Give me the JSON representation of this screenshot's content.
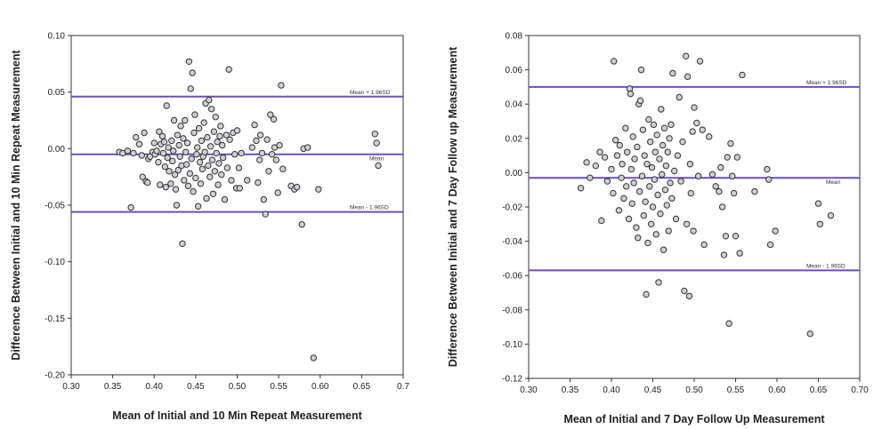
{
  "chart_data": [
    {
      "type": "scatter",
      "xlabel": "Mean of Initial and 10 Min Repeat Measurement",
      "ylabel": "Difference Between Initial and 10 Min Repeat Measurement",
      "xlim": [
        0.3,
        0.7
      ],
      "ylim": [
        -0.2,
        0.1
      ],
      "xticks": [
        "0.30",
        "0.35",
        "0.40",
        "0.45",
        "0.50",
        "0.55",
        "0.60",
        "0.65",
        "0.7"
      ],
      "yticks": [
        "0.10",
        "0.05",
        "0.00",
        "-0.05",
        "-0.10",
        "-0.15",
        "-0.20"
      ],
      "reference_lines": [
        {
          "label": "Mean + 1.96SD",
          "y": 0.046
        },
        {
          "label": "Mean",
          "y": -0.005
        },
        {
          "label": "Mean - 1.96SD",
          "y": -0.056
        }
      ],
      "points": [
        [
          0.358,
          -0.003
        ],
        [
          0.362,
          -0.004
        ],
        [
          0.368,
          -0.002
        ],
        [
          0.372,
          -0.052
        ],
        [
          0.375,
          -0.004
        ],
        [
          0.378,
          0.01
        ],
        [
          0.382,
          0.004
        ],
        [
          0.385,
          -0.006
        ],
        [
          0.386,
          -0.025
        ],
        [
          0.388,
          0.014
        ],
        [
          0.39,
          -0.029
        ],
        [
          0.392,
          -0.03
        ],
        [
          0.393,
          -0.009
        ],
        [
          0.395,
          -0.007
        ],
        [
          0.398,
          -0.003
        ],
        [
          0.4,
          0.005
        ],
        [
          0.401,
          -0.005
        ],
        [
          0.403,
          -0.002
        ],
        [
          0.405,
          -0.012
        ],
        [
          0.406,
          0.015
        ],
        [
          0.407,
          -0.032
        ],
        [
          0.408,
          0.004
        ],
        [
          0.41,
          0.011
        ],
        [
          0.411,
          -0.004
        ],
        [
          0.412,
          0.006
        ],
        [
          0.413,
          -0.016
        ],
        [
          0.414,
          -0.034
        ],
        [
          0.415,
          0.038
        ],
        [
          0.416,
          -0.008
        ],
        [
          0.417,
          0.001
        ],
        [
          0.418,
          -0.02
        ],
        [
          0.42,
          -0.031
        ],
        [
          0.421,
          0.007
        ],
        [
          0.422,
          -0.011
        ],
        [
          0.423,
          -0.002
        ],
        [
          0.424,
          0.025
        ],
        [
          0.425,
          -0.023
        ],
        [
          0.426,
          -0.036
        ],
        [
          0.427,
          -0.05
        ],
        [
          0.428,
          0.012
        ],
        [
          0.429,
          -0.019
        ],
        [
          0.43,
          0.003
        ],
        [
          0.431,
          -0.007
        ],
        [
          0.432,
          0.02
        ],
        [
          0.433,
          -0.015
        ],
        [
          0.434,
          -0.084
        ],
        [
          0.435,
          0.009
        ],
        [
          0.436,
          -0.028
        ],
        [
          0.437,
          0.025
        ],
        [
          0.438,
          -0.003
        ],
        [
          0.439,
          -0.014
        ],
        [
          0.44,
          0.005
        ],
        [
          0.441,
          -0.033
        ],
        [
          0.442,
          0.077
        ],
        [
          0.443,
          -0.022
        ],
        [
          0.444,
          0.053
        ],
        [
          0.445,
          -0.009
        ],
        [
          0.446,
          0.067
        ],
        [
          0.447,
          -0.038
        ],
        [
          0.448,
          0.014
        ],
        [
          0.449,
          0.03
        ],
        [
          0.45,
          -0.026
        ],
        [
          0.451,
          -0.005
        ],
        [
          0.452,
          0.001
        ],
        [
          0.453,
          -0.051
        ],
        [
          0.454,
          0.018
        ],
        [
          0.455,
          -0.012
        ],
        [
          0.456,
          -0.031
        ],
        [
          0.457,
          0.007
        ],
        [
          0.458,
          -0.018
        ],
        [
          0.459,
          -0.007
        ],
        [
          0.46,
          0.023
        ],
        [
          0.461,
          -0.003
        ],
        [
          0.462,
          0.04
        ],
        [
          0.463,
          -0.044
        ],
        [
          0.464,
          0.01
        ],
        [
          0.465,
          -0.015
        ],
        [
          0.466,
          0.043
        ],
        [
          0.467,
          -0.025
        ],
        [
          0.468,
          0.002
        ],
        [
          0.469,
          0.035
        ],
        [
          0.47,
          -0.01
        ],
        [
          0.471,
          -0.04
        ],
        [
          0.472,
          0.015
        ],
        [
          0.473,
          -0.02
        ],
        [
          0.474,
          0.028
        ],
        [
          0.475,
          -0.004
        ],
        [
          0.476,
          0.006
        ],
        [
          0.477,
          -0.032
        ],
        [
          0.478,
          -0.013
        ],
        [
          0.479,
          0.011
        ],
        [
          0.48,
          0.02
        ],
        [
          0.481,
          -0.023
        ],
        [
          0.482,
          0.003
        ],
        [
          0.483,
          -0.008
        ],
        [
          0.485,
          -0.045
        ],
        [
          0.487,
          0.012
        ],
        [
          0.488,
          -0.017
        ],
        [
          0.49,
          0.07
        ],
        [
          0.491,
          0.008
        ],
        [
          0.493,
          -0.028
        ],
        [
          0.495,
          0.014
        ],
        [
          0.497,
          -0.005
        ],
        [
          0.499,
          -0.035
        ],
        [
          0.5,
          0.016
        ],
        [
          0.502,
          -0.017
        ],
        [
          0.503,
          -0.035
        ],
        [
          0.505,
          -0.004
        ],
        [
          0.512,
          -0.028
        ],
        [
          0.518,
          0.001
        ],
        [
          0.521,
          0.021
        ],
        [
          0.523,
          0.007
        ],
        [
          0.525,
          -0.03
        ],
        [
          0.527,
          -0.01
        ],
        [
          0.528,
          0.012
        ],
        [
          0.53,
          -0.004
        ],
        [
          0.532,
          -0.045
        ],
        [
          0.534,
          -0.058
        ],
        [
          0.536,
          0.008
        ],
        [
          0.538,
          -0.02
        ],
        [
          0.54,
          0.03
        ],
        [
          0.542,
          -0.005
        ],
        [
          0.544,
          0.026
        ],
        [
          0.545,
          0.001
        ],
        [
          0.547,
          -0.01
        ],
        [
          0.549,
          -0.039
        ],
        [
          0.551,
          0.003
        ],
        [
          0.553,
          0.056
        ],
        [
          0.555,
          -0.018
        ],
        [
          0.565,
          -0.033
        ],
        [
          0.569,
          -0.036
        ],
        [
          0.572,
          -0.034
        ],
        [
          0.578,
          -0.067
        ],
        [
          0.58,
          0.0
        ],
        [
          0.585,
          0.001
        ],
        [
          0.592,
          -0.185
        ],
        [
          0.598,
          -0.036
        ],
        [
          0.666,
          0.013
        ],
        [
          0.668,
          0.005
        ],
        [
          0.67,
          -0.015
        ]
      ]
    },
    {
      "type": "scatter",
      "xlabel": "Mean of Initial and 7 Day Follow Up Measurement",
      "ylabel": "Difference Between Initial and 7 Day Follow up Measurement",
      "xlim": [
        0.3,
        0.7
      ],
      "ylim": [
        -0.12,
        0.08
      ],
      "xticks": [
        "0.30",
        "0.35",
        "0.40",
        "0.45",
        "0.50",
        "0.55",
        "0.60",
        "0.65",
        "0.70"
      ],
      "yticks": [
        "0.08",
        "0.06",
        "0.04",
        "0.02",
        "0.00",
        "-0.02",
        "-0.04",
        "-0.06",
        "-0.08",
        "-0.10",
        "-0.12"
      ],
      "reference_lines": [
        {
          "label": "Mean + 1.96SD",
          "y": 0.05
        },
        {
          "label": "Mean",
          "y": -0.003
        },
        {
          "label": "Mean - 1.96SD",
          "y": -0.057
        }
      ],
      "points": [
        [
          0.363,
          -0.009
        ],
        [
          0.37,
          0.006
        ],
        [
          0.374,
          -0.003
        ],
        [
          0.381,
          0.004
        ],
        [
          0.386,
          0.012
        ],
        [
          0.388,
          -0.028
        ],
        [
          0.392,
          0.009
        ],
        [
          0.395,
          -0.005
        ],
        [
          0.4,
          0.002
        ],
        [
          0.402,
          -0.012
        ],
        [
          0.403,
          0.065
        ],
        [
          0.405,
          0.019
        ],
        [
          0.407,
          0.01
        ],
        [
          0.409,
          -0.022
        ],
        [
          0.41,
          0.016
        ],
        [
          0.412,
          -0.003
        ],
        [
          0.413,
          0.005
        ],
        [
          0.415,
          -0.015
        ],
        [
          0.417,
          0.026
        ],
        [
          0.418,
          -0.008
        ],
        [
          0.419,
          0.012
        ],
        [
          0.421,
          -0.027
        ],
        [
          0.422,
          0.049
        ],
        [
          0.423,
          0.046
        ],
        [
          0.424,
          0.002
        ],
        [
          0.425,
          -0.018
        ],
        [
          0.426,
          0.021
        ],
        [
          0.427,
          -0.006
        ],
        [
          0.428,
          0.008
        ],
        [
          0.43,
          -0.032
        ],
        [
          0.431,
          0.015
        ],
        [
          0.432,
          -0.038
        ],
        [
          0.433,
          0.04
        ],
        [
          0.434,
          -0.011
        ],
        [
          0.435,
          0.042
        ],
        [
          0.436,
          0.06
        ],
        [
          0.437,
          -0.002
        ],
        [
          0.438,
          0.025
        ],
        [
          0.439,
          -0.025
        ],
        [
          0.44,
          0.01
        ],
        [
          0.441,
          -0.017
        ],
        [
          0.442,
          -0.071
        ],
        [
          0.443,
          0.005
        ],
        [
          0.444,
          -0.041
        ],
        [
          0.445,
          0.031
        ],
        [
          0.446,
          -0.008
        ],
        [
          0.447,
          0.018
        ],
        [
          0.448,
          -0.03
        ],
        [
          0.449,
          0.003
        ],
        [
          0.45,
          -0.02
        ],
        [
          0.451,
          0.028
        ],
        [
          0.452,
          -0.004
        ],
        [
          0.453,
          0.012
        ],
        [
          0.454,
          -0.036
        ],
        [
          0.455,
          0.022
        ],
        [
          0.456,
          -0.013
        ],
        [
          0.457,
          -0.064
        ],
        [
          0.458,
          0.008
        ],
        [
          0.459,
          -0.024
        ],
        [
          0.46,
          0.037
        ],
        [
          0.461,
          -0.001
        ],
        [
          0.462,
          0.016
        ],
        [
          0.463,
          -0.045
        ],
        [
          0.464,
          0.026
        ],
        [
          0.465,
          -0.01
        ],
        [
          0.466,
          0.004
        ],
        [
          0.467,
          -0.019
        ],
        [
          0.468,
          0.012
        ],
        [
          0.469,
          -0.034
        ],
        [
          0.47,
          0.02
        ],
        [
          0.471,
          -0.006
        ],
        [
          0.472,
          0.028
        ],
        [
          0.473,
          -0.015
        ],
        [
          0.474,
          0.058
        ],
        [
          0.476,
          0.001
        ],
        [
          0.478,
          -0.027
        ],
        [
          0.48,
          0.01
        ],
        [
          0.482,
          0.044
        ],
        [
          0.484,
          -0.005
        ],
        [
          0.486,
          0.018
        ],
        [
          0.488,
          -0.069
        ],
        [
          0.49,
          0.068
        ],
        [
          0.491,
          -0.03
        ],
        [
          0.492,
          0.056
        ],
        [
          0.494,
          -0.072
        ],
        [
          0.495,
          0.005
        ],
        [
          0.496,
          -0.012
        ],
        [
          0.498,
          0.024
        ],
        [
          0.499,
          -0.034
        ],
        [
          0.5,
          0.038
        ],
        [
          0.503,
          0.029
        ],
        [
          0.505,
          -0.002
        ],
        [
          0.507,
          0.065
        ],
        [
          0.51,
          0.025
        ],
        [
          0.512,
          -0.042
        ],
        [
          0.518,
          0.021
        ],
        [
          0.522,
          -0.001
        ],
        [
          0.526,
          -0.008
        ],
        [
          0.53,
          -0.011
        ],
        [
          0.532,
          0.003
        ],
        [
          0.534,
          -0.02
        ],
        [
          0.536,
          -0.048
        ],
        [
          0.538,
          -0.037
        ],
        [
          0.54,
          0.009
        ],
        [
          0.542,
          -0.088
        ],
        [
          0.544,
          0.017
        ],
        [
          0.546,
          -0.002
        ],
        [
          0.548,
          -0.012
        ],
        [
          0.55,
          -0.037
        ],
        [
          0.552,
          0.009
        ],
        [
          0.555,
          -0.047
        ],
        [
          0.558,
          0.057
        ],
        [
          0.573,
          -0.011
        ],
        [
          0.588,
          0.002
        ],
        [
          0.59,
          -0.004
        ],
        [
          0.592,
          -0.042
        ],
        [
          0.598,
          -0.034
        ],
        [
          0.64,
          -0.094
        ],
        [
          0.65,
          -0.018
        ],
        [
          0.652,
          -0.03
        ],
        [
          0.665,
          -0.025
        ]
      ]
    }
  ]
}
